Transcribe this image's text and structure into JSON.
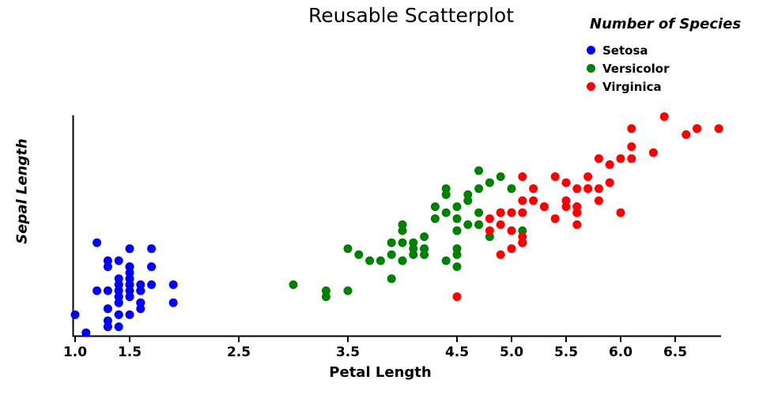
{
  "chart_data": {
    "type": "scatter",
    "title": "Reusable Scatterplot",
    "xlabel": "Petal Length",
    "ylabel": "Sepal Length",
    "xlim": [
      1.0,
      7.0
    ],
    "ylim": [
      4.2,
      8.0
    ],
    "grid": false,
    "x_ticks": [
      {
        "value": 1.0,
        "label": "1.0"
      },
      {
        "value": 1.5,
        "label": "1.5"
      },
      {
        "value": 2.5,
        "label": "2.5"
      },
      {
        "value": 3.5,
        "label": "3.5"
      },
      {
        "value": 4.5,
        "label": "4.5"
      },
      {
        "value": 5.0,
        "label": "5.0"
      },
      {
        "value": 5.5,
        "label": "5.5"
      },
      {
        "value": 6.0,
        "label": "6.0"
      },
      {
        "value": 6.5,
        "label": "6.5"
      }
    ],
    "y_ticks": [],
    "legend": {
      "title": "Number of Species",
      "position": "top-right",
      "entries": [
        {
          "label": "Setosa",
          "color": "#0000ff"
        },
        {
          "label": "Versicolor",
          "color": "#008000"
        },
        {
          "label": "Virginica",
          "color": "#ff0000"
        }
      ]
    },
    "series": [
      {
        "name": "Setosa",
        "color": "#0000ff",
        "points": [
          [
            1.4,
            5.1
          ],
          [
            1.4,
            4.9
          ],
          [
            1.3,
            4.7
          ],
          [
            1.5,
            4.6
          ],
          [
            1.4,
            5.0
          ],
          [
            1.7,
            5.4
          ],
          [
            1.4,
            4.6
          ],
          [
            1.5,
            5.0
          ],
          [
            1.4,
            4.4
          ],
          [
            1.5,
            4.9
          ],
          [
            1.5,
            5.4
          ],
          [
            1.6,
            4.8
          ],
          [
            1.4,
            4.8
          ],
          [
            1.1,
            4.3
          ],
          [
            1.2,
            5.8
          ],
          [
            1.5,
            5.7
          ],
          [
            1.3,
            5.4
          ],
          [
            1.4,
            5.1
          ],
          [
            1.7,
            5.7
          ],
          [
            1.5,
            5.1
          ],
          [
            1.7,
            5.4
          ],
          [
            1.5,
            5.1
          ],
          [
            1.0,
            4.6
          ],
          [
            1.7,
            5.1
          ],
          [
            1.9,
            4.8
          ],
          [
            1.6,
            5.0
          ],
          [
            1.6,
            5.0
          ],
          [
            1.5,
            5.2
          ],
          [
            1.4,
            5.2
          ],
          [
            1.6,
            4.7
          ],
          [
            1.6,
            4.8
          ],
          [
            1.5,
            5.4
          ],
          [
            1.5,
            5.2
          ],
          [
            1.4,
            5.5
          ],
          [
            1.5,
            4.9
          ],
          [
            1.2,
            5.0
          ],
          [
            1.3,
            5.5
          ],
          [
            1.4,
            4.9
          ],
          [
            1.3,
            4.4
          ],
          [
            1.5,
            5.1
          ],
          [
            1.3,
            5.0
          ],
          [
            1.3,
            4.5
          ],
          [
            1.3,
            4.4
          ],
          [
            1.6,
            5.0
          ],
          [
            1.9,
            5.1
          ],
          [
            1.4,
            4.8
          ],
          [
            1.6,
            5.1
          ],
          [
            1.4,
            4.6
          ],
          [
            1.5,
            5.3
          ],
          [
            1.4,
            5.0
          ]
        ]
      },
      {
        "name": "Versicolor",
        "color": "#008000",
        "points": [
          [
            4.7,
            7.0
          ],
          [
            4.5,
            6.4
          ],
          [
            4.9,
            6.9
          ],
          [
            4.0,
            5.5
          ],
          [
            4.6,
            6.5
          ],
          [
            4.5,
            5.7
          ],
          [
            4.7,
            6.3
          ],
          [
            3.3,
            4.9
          ],
          [
            4.6,
            6.6
          ],
          [
            3.9,
            5.2
          ],
          [
            3.5,
            5.0
          ],
          [
            4.2,
            5.9
          ],
          [
            4.0,
            6.0
          ],
          [
            4.7,
            6.1
          ],
          [
            3.6,
            5.6
          ],
          [
            4.4,
            6.7
          ],
          [
            4.5,
            5.6
          ],
          [
            4.1,
            5.8
          ],
          [
            4.5,
            6.2
          ],
          [
            3.9,
            5.6
          ],
          [
            4.8,
            5.9
          ],
          [
            4.0,
            6.1
          ],
          [
            4.9,
            6.3
          ],
          [
            4.7,
            6.1
          ],
          [
            4.3,
            6.4
          ],
          [
            4.4,
            6.6
          ],
          [
            4.8,
            6.8
          ],
          [
            5.0,
            6.7
          ],
          [
            4.5,
            6.0
          ],
          [
            3.5,
            5.7
          ],
          [
            3.8,
            5.5
          ],
          [
            3.7,
            5.5
          ],
          [
            3.9,
            5.8
          ],
          [
            5.1,
            6.0
          ],
          [
            4.5,
            5.4
          ],
          [
            4.5,
            6.0
          ],
          [
            4.7,
            6.7
          ],
          [
            4.4,
            6.3
          ],
          [
            4.1,
            5.6
          ],
          [
            4.0,
            5.5
          ],
          [
            4.4,
            5.5
          ],
          [
            4.6,
            6.1
          ],
          [
            4.0,
            5.8
          ],
          [
            3.3,
            5.0
          ],
          [
            4.2,
            5.6
          ],
          [
            4.2,
            5.7
          ],
          [
            4.2,
            5.7
          ],
          [
            4.3,
            6.2
          ],
          [
            3.0,
            5.1
          ],
          [
            4.1,
            5.7
          ]
        ]
      },
      {
        "name": "Virginica",
        "color": "#ff0000",
        "points": [
          [
            6.0,
            6.3
          ],
          [
            5.1,
            5.8
          ],
          [
            5.9,
            7.1
          ],
          [
            5.6,
            6.3
          ],
          [
            5.8,
            6.5
          ],
          [
            6.6,
            7.6
          ],
          [
            4.5,
            4.9
          ],
          [
            6.3,
            7.3
          ],
          [
            5.8,
            6.7
          ],
          [
            6.1,
            7.2
          ],
          [
            5.1,
            6.5
          ],
          [
            5.3,
            6.4
          ],
          [
            5.5,
            6.8
          ],
          [
            5.0,
            5.7
          ],
          [
            5.1,
            5.8
          ],
          [
            5.3,
            6.4
          ],
          [
            5.5,
            6.5
          ],
          [
            6.7,
            7.7
          ],
          [
            6.9,
            7.7
          ],
          [
            5.0,
            6.0
          ],
          [
            5.7,
            6.9
          ],
          [
            4.9,
            5.6
          ],
          [
            6.7,
            7.7
          ],
          [
            4.9,
            6.3
          ],
          [
            5.7,
            6.7
          ],
          [
            6.0,
            7.2
          ],
          [
            4.8,
            6.2
          ],
          [
            4.9,
            6.1
          ],
          [
            5.6,
            6.4
          ],
          [
            5.8,
            7.2
          ],
          [
            6.1,
            7.4
          ],
          [
            6.4,
            7.9
          ],
          [
            5.6,
            6.4
          ],
          [
            5.1,
            6.3
          ],
          [
            5.6,
            6.1
          ],
          [
            6.1,
            7.7
          ],
          [
            5.6,
            6.3
          ],
          [
            5.5,
            6.4
          ],
          [
            4.8,
            6.0
          ],
          [
            5.4,
            6.9
          ],
          [
            5.6,
            6.7
          ],
          [
            5.1,
            6.9
          ],
          [
            5.1,
            5.8
          ],
          [
            5.9,
            6.8
          ],
          [
            5.7,
            6.7
          ],
          [
            5.2,
            6.7
          ],
          [
            5.0,
            6.3
          ],
          [
            5.2,
            6.5
          ],
          [
            5.4,
            6.2
          ],
          [
            5.1,
            5.9
          ]
        ]
      }
    ]
  }
}
